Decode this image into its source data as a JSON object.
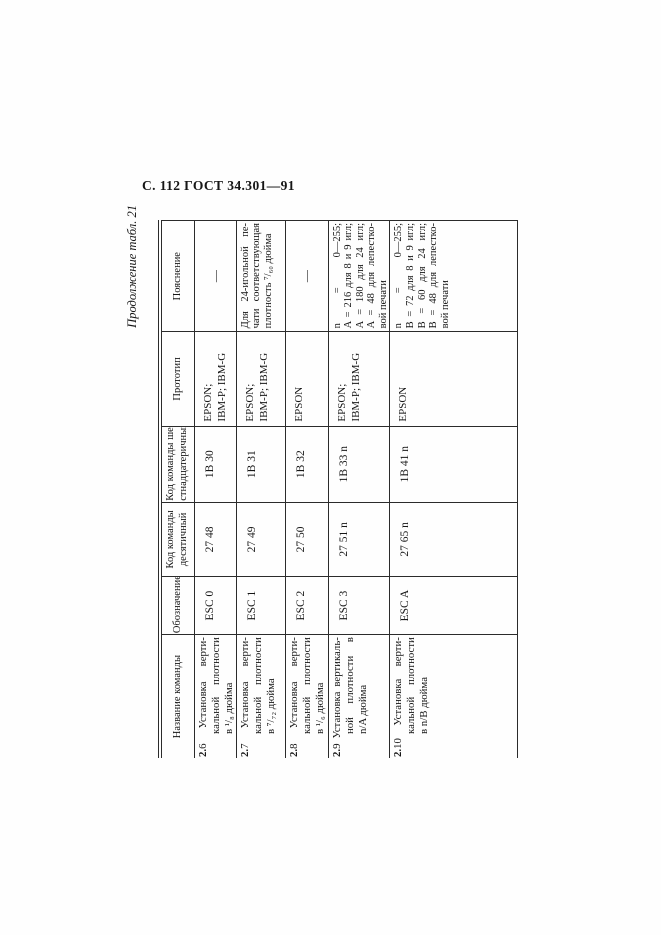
{
  "page_header": "С. 112 ГОСТ 34.301—91",
  "table_label": "Продолжение табл. 21",
  "table": {
    "headers": [
      [
        "Название команды"
      ],
      [
        "Обозначение"
      ],
      [
        "Код команды",
        "десятичный"
      ],
      [
        "Код команды ше-",
        "стнадцатеричный"
      ],
      [
        "Прототип"
      ],
      [
        "Пояснение"
      ]
    ],
    "rows": [
      {
        "name": [
          "2.6 Установка верти-",
          "кальной плотности",
          "в ¹/₈ дюйма"
        ],
        "designation": "ESC 0",
        "code_decimal": "27 48",
        "code_hex": "1B 30",
        "prototype": [
          "EPSON;",
          "IBM-P; IBM-G"
        ],
        "note": [
          "—"
        ]
      },
      {
        "name": [
          "2.7 Установка верти-",
          "кальной плотности",
          "в ⁷/₇₂ дюйма"
        ],
        "designation": "ESC 1",
        "code_decimal": "27 49",
        "code_hex": "1B 31",
        "prototype": [
          "EPSON;",
          "IBM-P; IBM-G"
        ],
        "note": [
          "Для 24-игольной пе-",
          "чати соответствующая",
          "плотность ⁷/₆₀ дюйма"
        ]
      },
      {
        "name": [
          "2.8 Установка верти-",
          "кальной плотности",
          "в ¹/₆ дюйма"
        ],
        "designation": "ESC 2",
        "code_decimal": "27 50",
        "code_hex": "1B 32",
        "prototype": [
          "EPSON"
        ],
        "note": [
          "—"
        ]
      },
      {
        "name": [
          "2.9 Установка вертикаль-",
          "ной плотности в",
          "n/A дюйма"
        ],
        "designation": "ESC 3",
        "code_decimal": "27 51 n",
        "code_hex": "1B 33 n",
        "prototype": [
          "EPSON;",
          "IBM-P; IBM-G"
        ],
        "note": [
          "n = 0—255;",
          "A = 216 для 8 и 9 игл;",
          "A = 180 для 24 игл;",
          "A = 48 для лепестко-",
          "вой печати"
        ]
      },
      {
        "name": [
          "2.10 Установка верти-",
          "кальной плотности",
          "в n/B дюйма"
        ],
        "designation": "ESC A",
        "code_decimal": "27 65 n",
        "code_hex": "1B 41 n",
        "prototype": [
          "EPSON"
        ],
        "note": [
          "n = 0—255;",
          "B = 72 для 8 и 9 игл;",
          "B = 60 для 24 игл;",
          "B = 48 для лепестко-",
          "вой печати"
        ]
      }
    ]
  }
}
